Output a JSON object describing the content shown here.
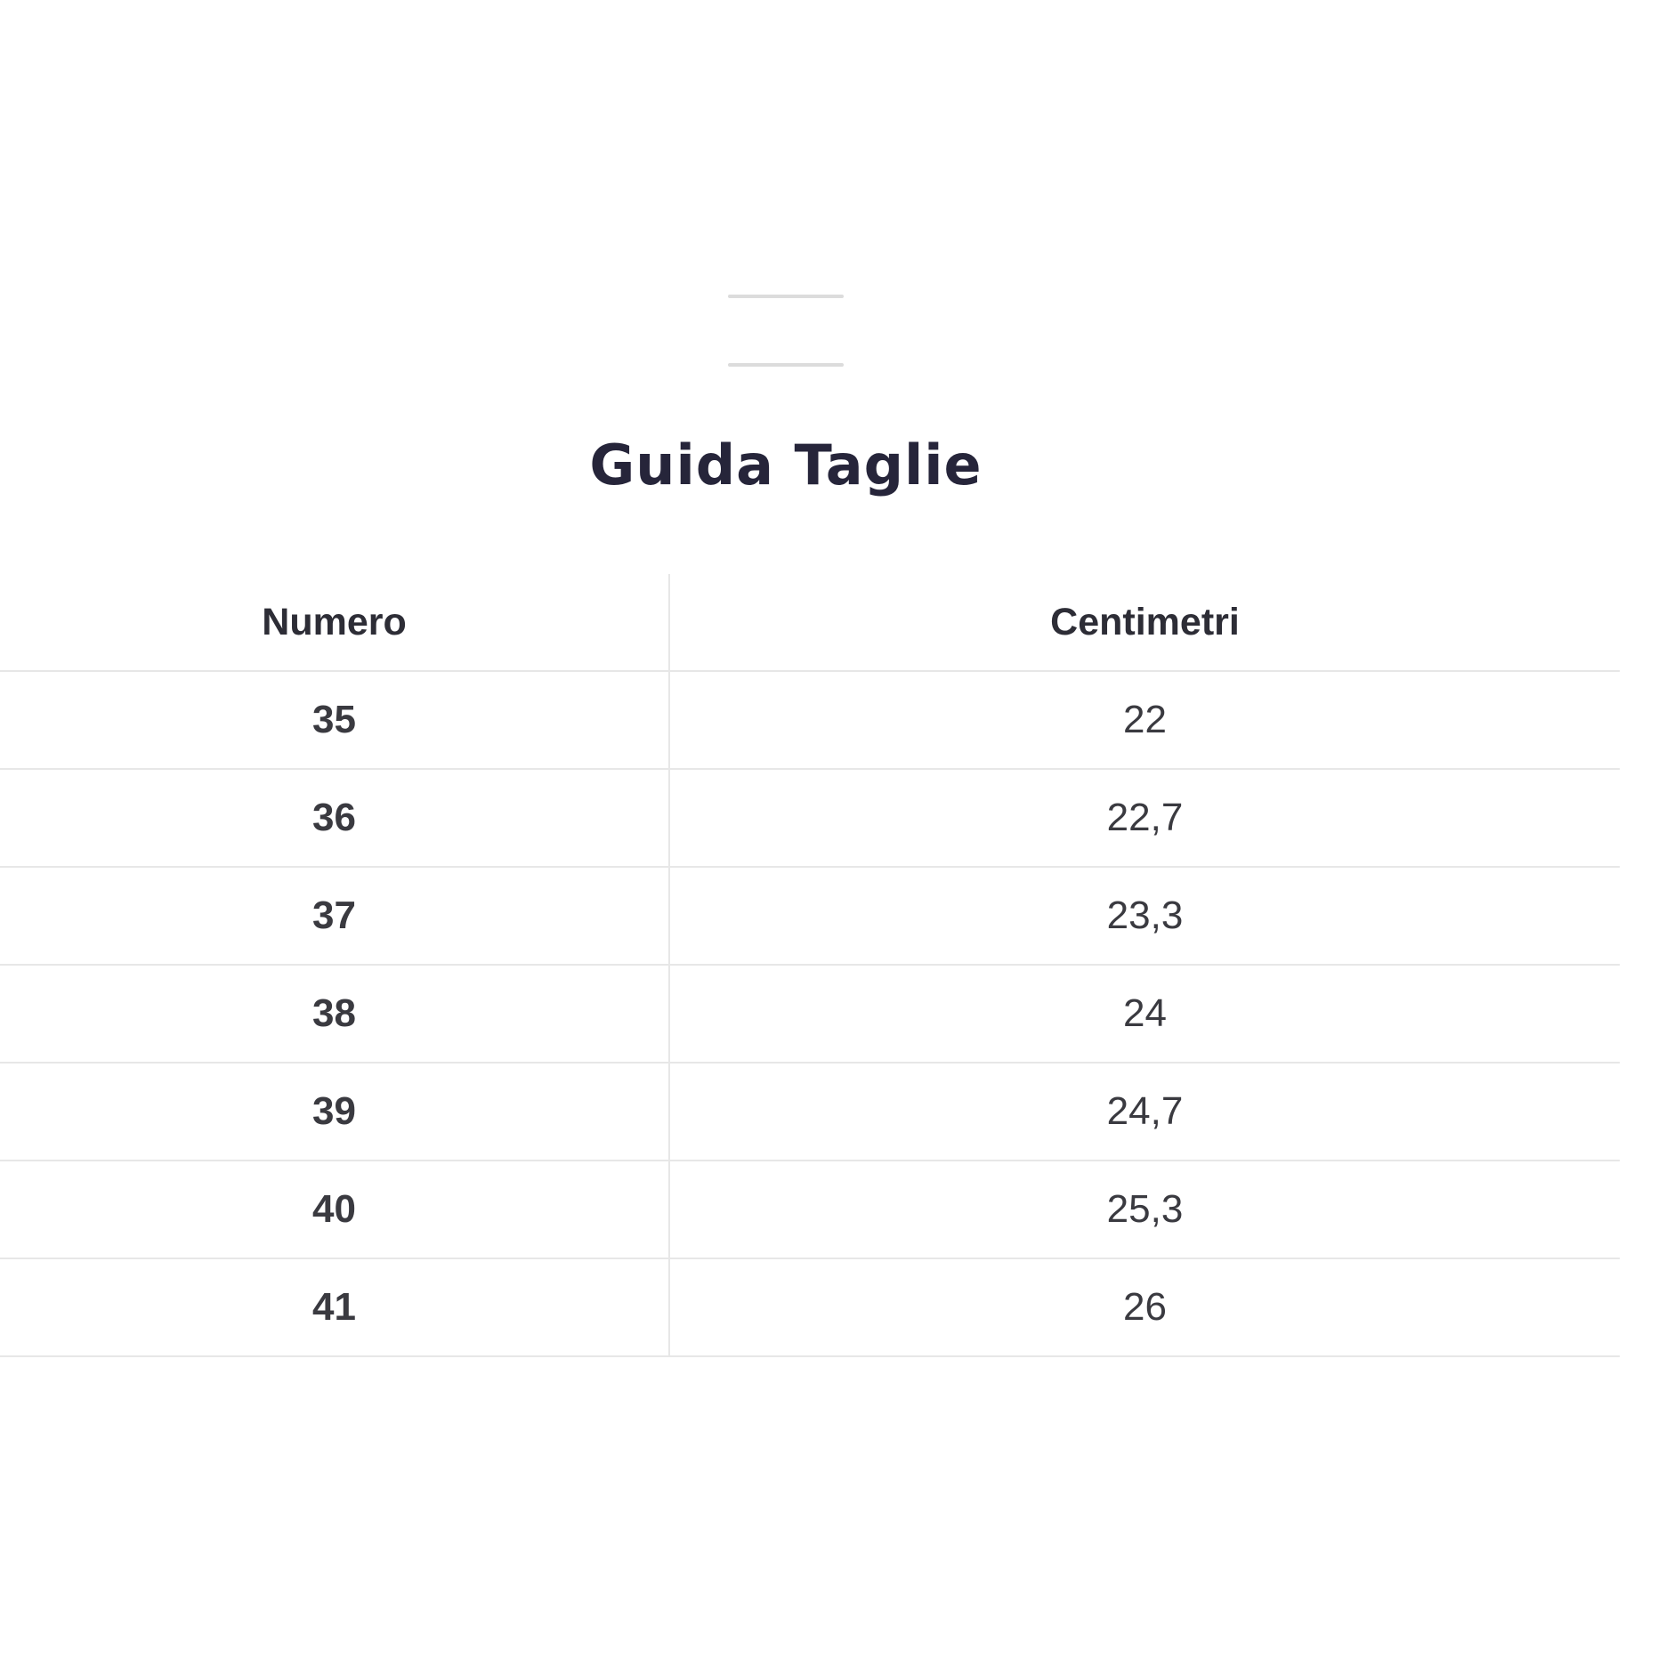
{
  "sheet": {
    "title": "Guida Taglie"
  },
  "icons": {
    "drag_handle": "drag-handle-icon"
  },
  "table": {
    "columns": [
      "Numero",
      "Centimetri"
    ],
    "rows": [
      {
        "numero": "35",
        "centimetri": "22"
      },
      {
        "numero": "36",
        "centimetri": "22,7"
      },
      {
        "numero": "37",
        "centimetri": "23,3"
      },
      {
        "numero": "38",
        "centimetri": "24"
      },
      {
        "numero": "39",
        "centimetri": "24,7"
      },
      {
        "numero": "40",
        "centimetri": "25,3"
      },
      {
        "numero": "41",
        "centimetri": "26"
      }
    ]
  },
  "colors": {
    "title_text": "#26253a",
    "header_text": "#2d2d36",
    "cell_text": "#3a3a40",
    "divider": "#e7e7e7",
    "handle": "#dcdcdc",
    "page_bg": "#ffffff"
  }
}
